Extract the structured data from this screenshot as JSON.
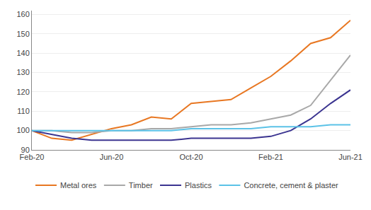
{
  "chart_data": {
    "type": "line",
    "categories": [
      "Feb-20",
      null,
      null,
      null,
      "Jun-20",
      null,
      null,
      null,
      "Oct-20",
      null,
      null,
      null,
      "Feb-21",
      null,
      null,
      null,
      "Jun-21"
    ],
    "series": [
      {
        "name": "Metal ores",
        "color": "#E87722",
        "values": [
          100,
          96,
          95,
          98,
          101,
          103,
          107,
          106,
          114,
          115,
          116,
          122,
          128,
          136,
          145,
          148,
          157
        ]
      },
      {
        "name": "Timber",
        "color": "#A8A8A8",
        "values": [
          100,
          100,
          99,
          99,
          100,
          100,
          101,
          101,
          102,
          103,
          103,
          104,
          106,
          108,
          113,
          126,
          139
        ]
      },
      {
        "name": "Plastics",
        "color": "#3B3490",
        "values": [
          100,
          98,
          96,
          95,
          95,
          95,
          95,
          95,
          96,
          96,
          96,
          96,
          97,
          100,
          106,
          114,
          121
        ]
      },
      {
        "name": "Concrete, cement & plaster",
        "color": "#5BC2E7",
        "values": [
          100,
          100,
          100,
          100,
          100,
          100,
          100,
          100,
          101,
          101,
          101,
          101,
          102,
          102,
          102,
          103,
          103
        ]
      }
    ],
    "ylim": [
      90,
      162
    ],
    "yticks": [
      90,
      100,
      110,
      120,
      130,
      140,
      150,
      160
    ],
    "grid": true,
    "legend": "bottom"
  }
}
